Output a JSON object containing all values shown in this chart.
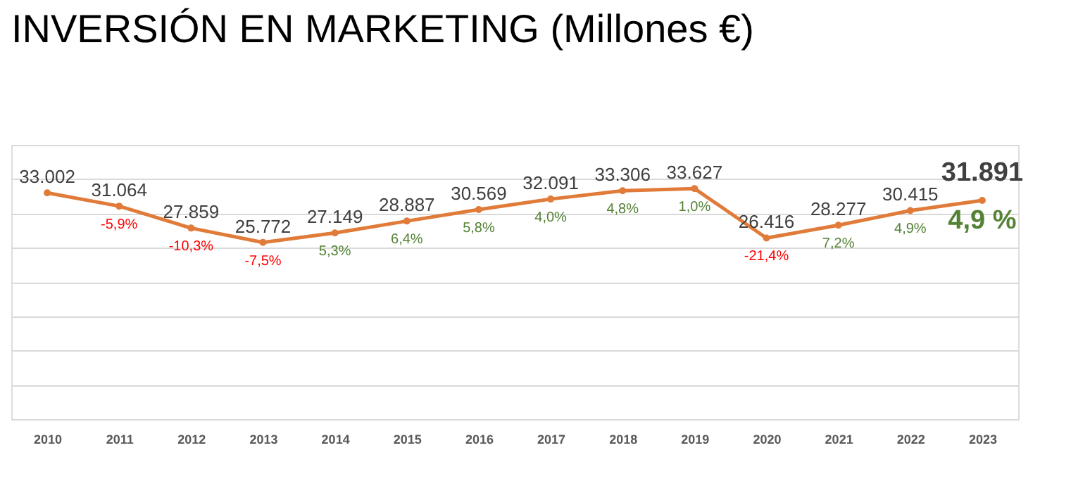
{
  "chart_data": {
    "type": "line",
    "title": "INVERSIÓN EN MARKETING (Millones €)",
    "categories": [
      "2010",
      "2011",
      "2012",
      "2013",
      "2014",
      "2015",
      "2016",
      "2017",
      "2018",
      "2019",
      "2020",
      "2021",
      "2022",
      "2023"
    ],
    "series": [
      {
        "color": "#e07b39",
        "values": [
          33002,
          31064,
          27859,
          25772,
          27149,
          28887,
          30569,
          32091,
          33306,
          33627,
          26416,
          28277,
          30415,
          31891
        ],
        "value_labels": [
          "33.002",
          "31.064",
          "27.859",
          "25.772",
          "27.149",
          "28.887",
          "30.569",
          "32.091",
          "33.306",
          "33.627",
          "26.416",
          "28.277",
          "30.415",
          "31.891"
        ]
      }
    ],
    "ylim": [
      0,
      40000
    ],
    "tick_labels": "x",
    "grid": "y",
    "marker": "circle",
    "line_style": "solid",
    "annotations": [
      {
        "text": "-5,9%",
        "x": "2011",
        "y": 31064
      },
      {
        "text": "-10,3%",
        "x": "2012",
        "y": 27859
      },
      {
        "text": "-7,5%",
        "x": "2013",
        "y": 25772
      },
      {
        "text": "5,3%",
        "x": "2014",
        "y": 27149
      },
      {
        "text": "6,4%",
        "x": "2015",
        "y": 28887
      },
      {
        "text": "5,8%",
        "x": "2016",
        "y": 30569
      },
      {
        "text": "4,0%",
        "x": "2017",
        "y": 32091
      },
      {
        "text": "4,8%",
        "x": "2018",
        "y": 33306
      },
      {
        "text": "1,0%",
        "x": "2019",
        "y": 33627
      },
      {
        "text": "-21,4%",
        "x": "2020",
        "y": 26416
      },
      {
        "text": "7,2%",
        "x": "2021",
        "y": 28277
      },
      {
        "text": "4,9%",
        "x": "2022",
        "y": 30415
      },
      {
        "text": "4,9 %",
        "x": "2023",
        "y": 31891
      }
    ]
  }
}
